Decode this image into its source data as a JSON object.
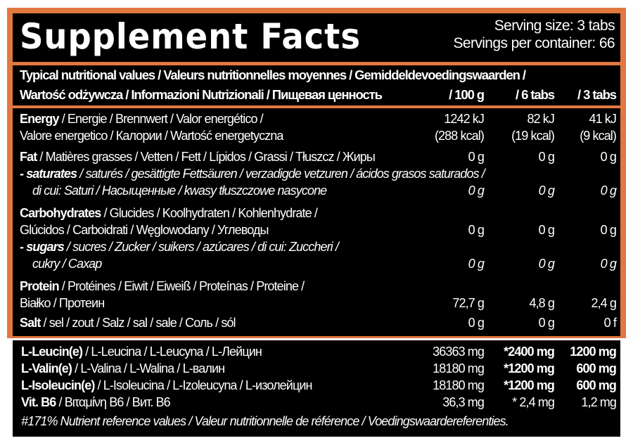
{
  "title": "Supplement Facts",
  "serving_size": "Serving size: 3 tabs",
  "servings_per_container": "Servings per container: 66",
  "header": {
    "line1": "Typical nutritional values / Valeurs nutritionnelles moyennes / Gemiddeldevoedingswaarden /",
    "line2": "Wartość odżywcza / Informazioni Nutrizionali / Пищевая ценность",
    "col1": "/ 100 g",
    "col2": "/ 6 tabs",
    "col3": "/ 3 tabs"
  },
  "nutrition": {
    "energy": {
      "bold": "Energy",
      "rest1": " / Energie / Brennwert /  Valor energético /",
      "line2": "Valore energetico / Калории / Wartość energetyczna",
      "kj": [
        "1242 kJ",
        "82 kJ",
        "41 kJ"
      ],
      "kcal": [
        "(288 kcal)",
        "(19 kcal)",
        "(9 kcal)"
      ]
    },
    "fat": {
      "bold": "Fat",
      "rest": " / Matières grasses / Vetten / Fett / Lípidos / Grassi / Tłuszcz / Жиры",
      "values": [
        "0 g",
        "0 g",
        "0 g"
      ]
    },
    "saturates": {
      "bold": "- saturates",
      "rest": " / saturés / gesättigte Fettsäuren / verzadigde vetzuren / ácidos grasos saturados /",
      "line2": "di cui: Saturi / Насыщенные / kwasy tłuszczowe nasycone",
      "values": [
        "0 g",
        "0 g",
        "0 g"
      ]
    },
    "carbohydrates": {
      "bold": "Carbohydrates",
      "rest": " / Glucides / Koolhydraten / Kohlenhydrate /",
      "line2": "Glúcidos / Carboidrati / Węglowodany / Углеводы",
      "values": [
        "0 g",
        "0 g",
        "0 g"
      ]
    },
    "sugars": {
      "bold": "- sugars",
      "rest": " / sucres / Zucker / suikers / azúcares / di cui: Zuccheri /",
      "line2": "cukry / Сахар",
      "values": [
        "0 g",
        "0 g",
        "0 g"
      ]
    },
    "protein": {
      "bold": "Protein",
      "rest": " / Protéines / Eiwit / Eiweiß / Proteínas / Proteine /",
      "line2": "Białko / Протеин",
      "values": [
        "72,7 g",
        "4,8 g",
        "2,4 g"
      ]
    },
    "salt": {
      "bold": "Salt",
      "rest": " / sel / zout / Salz / sal / sale / Соль / sól",
      "values": [
        "0 g",
        "0 g",
        "0 f"
      ]
    }
  },
  "aminos": [
    {
      "bold": "L-Leucin(e)",
      "rest": " / L-Leucina / L-Leucyna / L-Лейцин",
      "values": [
        "36363 mg",
        "*2400 mg",
        "1200 mg"
      ]
    },
    {
      "bold": "L-Valin(e)",
      "rest": " / L-Valina / L-Walina / L-валин",
      "values": [
        "18180 mg",
        "*1200 mg",
        "600 mg"
      ]
    },
    {
      "bold": "L-Isoleucin(e)",
      "rest": " / L-Isoleucina / L-Izoleucyna / L-изолейцин",
      "values": [
        "18180 mg",
        "*1200 mg",
        "600 mg"
      ]
    },
    {
      "bold": "Vit. B6",
      "rest": " / Βιταμίνη B6 / Вит. B6",
      "values": [
        "36,3 mg",
        "* 2,4 mg",
        "1,2 mg"
      ]
    }
  ],
  "footnote": "#171% Nutrient reference values / Valeur nutritionnelle de référence / Voedingswaardereferenties."
}
